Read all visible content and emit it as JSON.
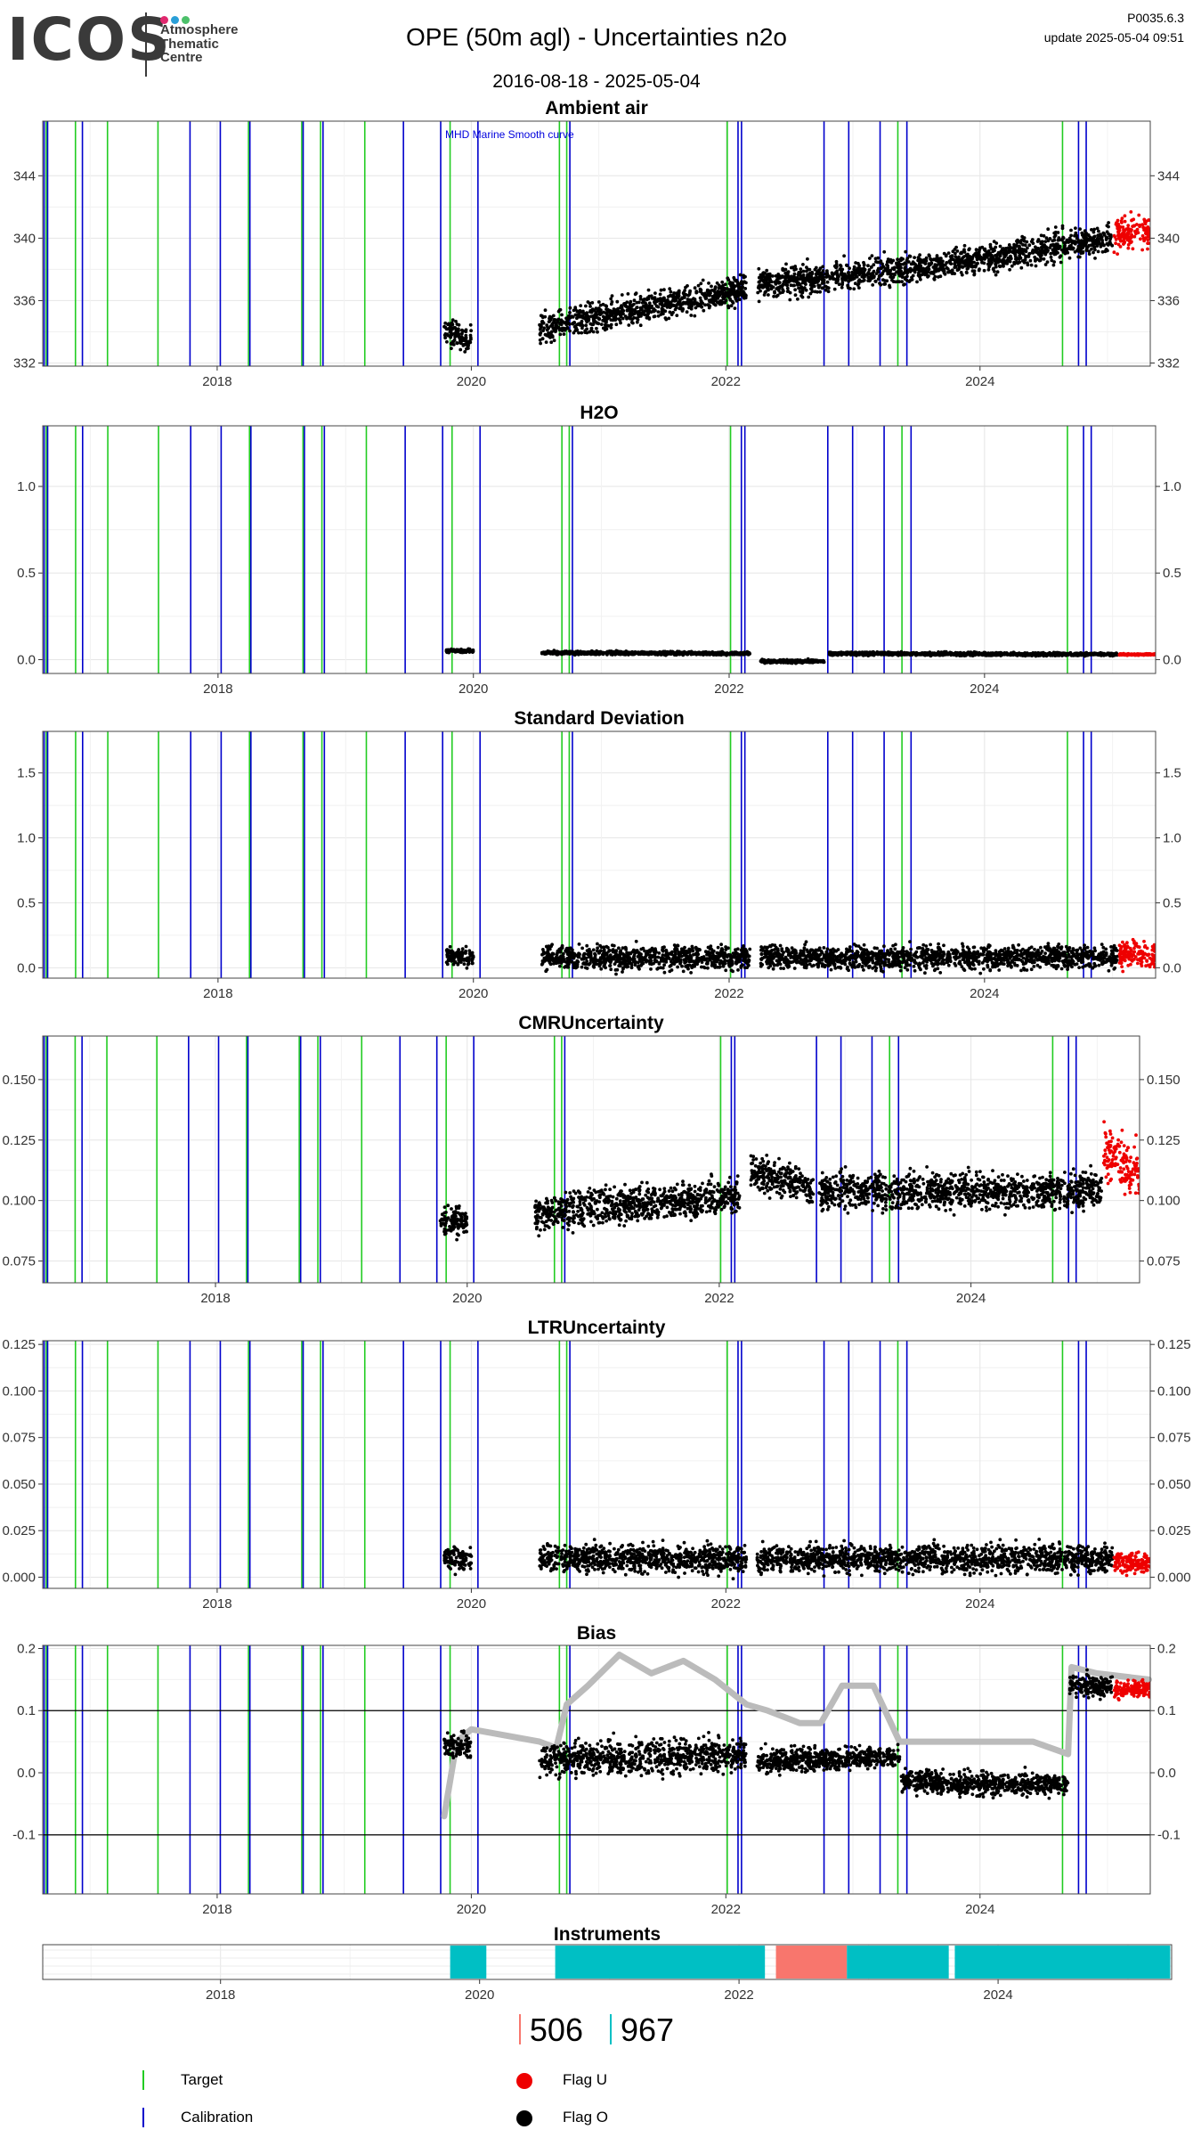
{
  "header": {
    "logo_text": "ICOS",
    "logo_sub_lines": [
      "Atmosphere",
      "Thematic",
      "Centre"
    ],
    "logo_dot_colors": [
      "#e0286e",
      "#2a9fd8",
      "#4cc06a"
    ],
    "title": "OPE  (50m agl) - Uncertainties n2o",
    "date_range": "2016-08-18 - 2025-05-04",
    "version": "P0035.6.3",
    "update": "update  2025-05-04 09:51"
  },
  "colors": {
    "target": "#22cc22",
    "calibration": "#0000cc",
    "flag_u": "#ee0000",
    "flag_o": "#000000",
    "instrument_a": "#f8766d",
    "instrument_b": "#00bfc4",
    "bias_smooth": "#bbbbbb",
    "bias_recent": "#f0a020"
  },
  "chart_data": [
    {
      "type": "scatter",
      "title": "Ambient air",
      "annotation": "MHD Marine Smooth curve",
      "xlim": [
        "2016-08-18",
        "2025-05-04"
      ],
      "x_ticks": [
        "2018",
        "2020",
        "2022",
        "2024"
      ],
      "ylim": [
        331.8,
        347.5
      ],
      "y_ticks": [
        "332",
        "336",
        "340",
        "344"
      ],
      "y_tick_values": [
        332,
        336,
        340,
        344
      ],
      "right_axis": true,
      "series": [
        {
          "flag": "O",
          "segments": [
            {
              "from": "2019-10-15",
              "to": "2020-01-01",
              "start": 334.0,
              "end": 333.5,
              "spread": 0.9
            },
            {
              "from": "2020-07-15",
              "to": "2022-03-01",
              "start": 334.2,
              "end": 336.8,
              "spread": 1.0
            },
            {
              "from": "2022-04-01",
              "to": "2023-08-15",
              "start": 337.0,
              "end": 338.2,
              "spread": 1.0
            },
            {
              "from": "2023-08-20",
              "to": "2025-01-15",
              "start": 338.2,
              "end": 340.0,
              "spread": 1.0
            }
          ]
        },
        {
          "flag": "U",
          "segments": [
            {
              "from": "2025-01-20",
              "to": "2025-05-04",
              "start": 340.2,
              "end": 340.5,
              "spread": 1.2
            }
          ]
        }
      ]
    },
    {
      "type": "scatter",
      "title": "H2O",
      "xlim": [
        "2016-08-18",
        "2025-05-04"
      ],
      "x_ticks": [
        "2018",
        "2020",
        "2022",
        "2024"
      ],
      "ylim": [
        -0.08,
        1.35
      ],
      "y_ticks": [
        "0.0",
        "0.5",
        "1.0"
      ],
      "y_tick_values": [
        0.0,
        0.5,
        1.0
      ],
      "right_axis": true,
      "series": [
        {
          "flag": "O",
          "segments": [
            {
              "from": "2019-10-15",
              "to": "2020-01-01",
              "start": 0.05,
              "end": 0.05,
              "spread": 0.01
            },
            {
              "from": "2020-07-15",
              "to": "2022-03-01",
              "start": 0.04,
              "end": 0.035,
              "spread": 0.01
            },
            {
              "from": "2022-04-01",
              "to": "2022-10-01",
              "start": -0.01,
              "end": -0.01,
              "spread": 0.01
            },
            {
              "from": "2022-10-15",
              "to": "2025-01-15",
              "start": 0.035,
              "end": 0.03,
              "spread": 0.01
            }
          ]
        },
        {
          "flag": "U",
          "segments": [
            {
              "from": "2025-01-20",
              "to": "2025-05-04",
              "start": 0.03,
              "end": 0.03,
              "spread": 0.005
            }
          ]
        }
      ]
    },
    {
      "type": "scatter",
      "title": "Standard Deviation",
      "xlim": [
        "2016-08-18",
        "2025-05-04"
      ],
      "x_ticks": [
        "2018",
        "2020",
        "2022",
        "2024"
      ],
      "ylim": [
        -0.08,
        1.82
      ],
      "y_ticks": [
        "0.0",
        "0.5",
        "1.0",
        "1.5"
      ],
      "y_tick_values": [
        0.0,
        0.5,
        1.0,
        1.5
      ],
      "right_axis": true,
      "series": [
        {
          "flag": "O",
          "segments": [
            {
              "from": "2019-10-15",
              "to": "2020-01-01",
              "start": 0.08,
              "end": 0.08,
              "spread": 0.08
            },
            {
              "from": "2020-07-15",
              "to": "2022-03-01",
              "start": 0.08,
              "end": 0.08,
              "spread": 0.1
            },
            {
              "from": "2022-04-01",
              "to": "2025-01-15",
              "start": 0.08,
              "end": 0.08,
              "spread": 0.1
            }
          ]
        },
        {
          "flag": "U",
          "segments": [
            {
              "from": "2025-01-20",
              "to": "2025-05-04",
              "start": 0.1,
              "end": 0.1,
              "spread": 0.12
            }
          ]
        }
      ]
    },
    {
      "type": "scatter",
      "title": "CMRUncertainty",
      "xlim": [
        "2016-08-18",
        "2025-05-04"
      ],
      "x_ticks": [
        "2018",
        "2020",
        "2022",
        "2024"
      ],
      "ylim": [
        0.066,
        0.168
      ],
      "y_ticks": [
        "0.075",
        "0.100",
        "0.125",
        "0.150"
      ],
      "y_tick_values": [
        0.075,
        0.1,
        0.125,
        0.15
      ],
      "right_axis": true,
      "series": [
        {
          "flag": "O",
          "segments": [
            {
              "from": "2019-10-15",
              "to": "2020-01-01",
              "start": 0.092,
              "end": 0.092,
              "spread": 0.006
            },
            {
              "from": "2020-07-15",
              "to": "2022-03-01",
              "start": 0.095,
              "end": 0.102,
              "spread": 0.008
            },
            {
              "from": "2022-04-01",
              "to": "2022-10-01",
              "start": 0.112,
              "end": 0.105,
              "spread": 0.008
            },
            {
              "from": "2022-10-15",
              "to": "2025-01-15",
              "start": 0.104,
              "end": 0.104,
              "spread": 0.008
            }
          ]
        },
        {
          "flag": "U",
          "segments": [
            {
              "from": "2025-01-20",
              "to": "2025-05-04",
              "start": 0.12,
              "end": 0.11,
              "spread": 0.012
            }
          ]
        }
      ]
    },
    {
      "type": "scatter",
      "title": "LTRUncertainty",
      "xlim": [
        "2016-08-18",
        "2025-05-04"
      ],
      "x_ticks": [
        "2018",
        "2020",
        "2022",
        "2024"
      ],
      "ylim": [
        -0.006,
        0.127
      ],
      "y_ticks": [
        "0.000",
        "0.025",
        "0.050",
        "0.075",
        "0.100",
        "0.125"
      ],
      "y_tick_values": [
        0.0,
        0.025,
        0.05,
        0.075,
        0.1,
        0.125
      ],
      "right_axis": true,
      "series": [
        {
          "flag": "O",
          "segments": [
            {
              "from": "2019-10-15",
              "to": "2020-01-01",
              "start": 0.01,
              "end": 0.01,
              "spread": 0.006
            },
            {
              "from": "2020-07-15",
              "to": "2022-03-01",
              "start": 0.01,
              "end": 0.01,
              "spread": 0.008
            },
            {
              "from": "2022-04-01",
              "to": "2025-01-15",
              "start": 0.01,
              "end": 0.01,
              "spread": 0.008
            }
          ]
        },
        {
          "flag": "U",
          "segments": [
            {
              "from": "2025-01-20",
              "to": "2025-05-04",
              "start": 0.008,
              "end": 0.008,
              "spread": 0.006
            }
          ]
        }
      ]
    },
    {
      "type": "scatter",
      "title": "Bias",
      "xlim": [
        "2016-08-18",
        "2025-05-04"
      ],
      "x_ticks": [
        "2018",
        "2020",
        "2022",
        "2024"
      ],
      "ylim": [
        -0.195,
        0.205
      ],
      "y_ticks": [
        "-0.1",
        "0.0",
        "0.1",
        "0.2"
      ],
      "y_tick_values": [
        -0.1,
        0.0,
        0.1,
        0.2
      ],
      "reference_lines": [
        -0.1,
        0.1
      ],
      "right_axis": true,
      "smooth_curve": {
        "x": [
          "2019-10-15",
          "2019-11-20",
          "2020-01-01",
          "2020-07-15",
          "2020-09-01",
          "2020-10-01",
          "2020-12-01",
          "2021-03-01",
          "2021-06-01",
          "2021-09-01",
          "2021-12-01",
          "2022-03-01",
          "2022-05-01",
          "2022-08-01",
          "2022-10-01",
          "2022-12-01",
          "2023-03-01",
          "2023-05-15",
          "2023-08-01",
          "2023-12-01",
          "2024-03-01",
          "2024-06-01",
          "2024-09-10",
          "2024-09-20",
          "2024-12-01",
          "2025-04-30"
        ],
        "y": [
          -0.07,
          0.05,
          0.07,
          0.05,
          0.04,
          0.11,
          0.14,
          0.19,
          0.16,
          0.18,
          0.15,
          0.11,
          0.1,
          0.08,
          0.08,
          0.14,
          0.14,
          0.05,
          0.05,
          0.05,
          0.05,
          0.05,
          0.03,
          0.17,
          0.16,
          0.15
        ]
      },
      "series": [
        {
          "flag": "O",
          "segments": [
            {
              "from": "2019-10-15",
              "to": "2020-01-01",
              "start": 0.045,
              "end": 0.04,
              "spread": 0.02
            },
            {
              "from": "2020-07-15",
              "to": "2022-03-01",
              "start": 0.02,
              "end": 0.03,
              "spread": 0.03
            },
            {
              "from": "2022-04-01",
              "to": "2023-05-15",
              "start": 0.02,
              "end": 0.025,
              "spread": 0.02
            },
            {
              "from": "2023-05-20",
              "to": "2024-09-10",
              "start": -0.015,
              "end": -0.02,
              "spread": 0.02
            },
            {
              "from": "2024-09-15",
              "to": "2025-01-15",
              "start": 0.14,
              "end": 0.14,
              "spread": 0.02
            }
          ]
        },
        {
          "flag": "U",
          "segments": [
            {
              "from": "2025-01-20",
              "to": "2025-05-04",
              "start": 0.135,
              "end": 0.135,
              "spread": 0.015
            }
          ]
        }
      ]
    },
    {
      "type": "bar",
      "title": "Instruments",
      "xlim": [
        "2016-08-18",
        "2025-05-04"
      ],
      "x_ticks": [
        "2018",
        "2020",
        "2022",
        "2024"
      ],
      "periods": [
        {
          "instrument": "967",
          "from": "2019-10-10",
          "to": "2020-01-20"
        },
        {
          "instrument": "967",
          "from": "2020-08-01",
          "to": "2022-03-15"
        },
        {
          "instrument": "506",
          "from": "2022-04-15",
          "to": "2022-11-01"
        },
        {
          "instrument": "967",
          "from": "2022-11-01",
          "to": "2023-08-15"
        },
        {
          "instrument": "967",
          "from": "2023-09-01",
          "to": "2025-04-30"
        }
      ]
    }
  ],
  "event_lines": {
    "target": [
      "2016-08-28",
      "2016-11-20",
      "2017-02-20",
      "2017-07-15",
      "2018-04-01",
      "2018-09-01",
      "2018-10-25",
      "2019-03-01",
      "2019-11-01",
      "2020-09-10",
      "2020-10-01",
      "2022-01-05",
      "2023-05-10",
      "2024-08-25"
    ],
    "calibration": [
      "2016-08-22",
      "2016-09-01",
      "2016-12-10",
      "2017-10-15",
      "2018-01-10",
      "2018-04-05",
      "2018-09-05",
      "2018-11-01",
      "2019-06-20",
      "2019-10-05",
      "2020-01-20",
      "2020-10-10",
      "2022-02-05",
      "2022-02-15",
      "2022-10-10",
      "2022-12-20",
      "2023-03-20",
      "2023-06-05",
      "2024-10-10",
      "2024-11-01"
    ]
  },
  "instrument_counts": [
    {
      "label": "506",
      "color": "#f8766d"
    },
    {
      "label": "967",
      "color": "#00bfc4"
    }
  ],
  "legend": {
    "target": "Target",
    "calibration": "Calibration",
    "flag_u": "Flag U",
    "flag_o": "Flag O"
  }
}
